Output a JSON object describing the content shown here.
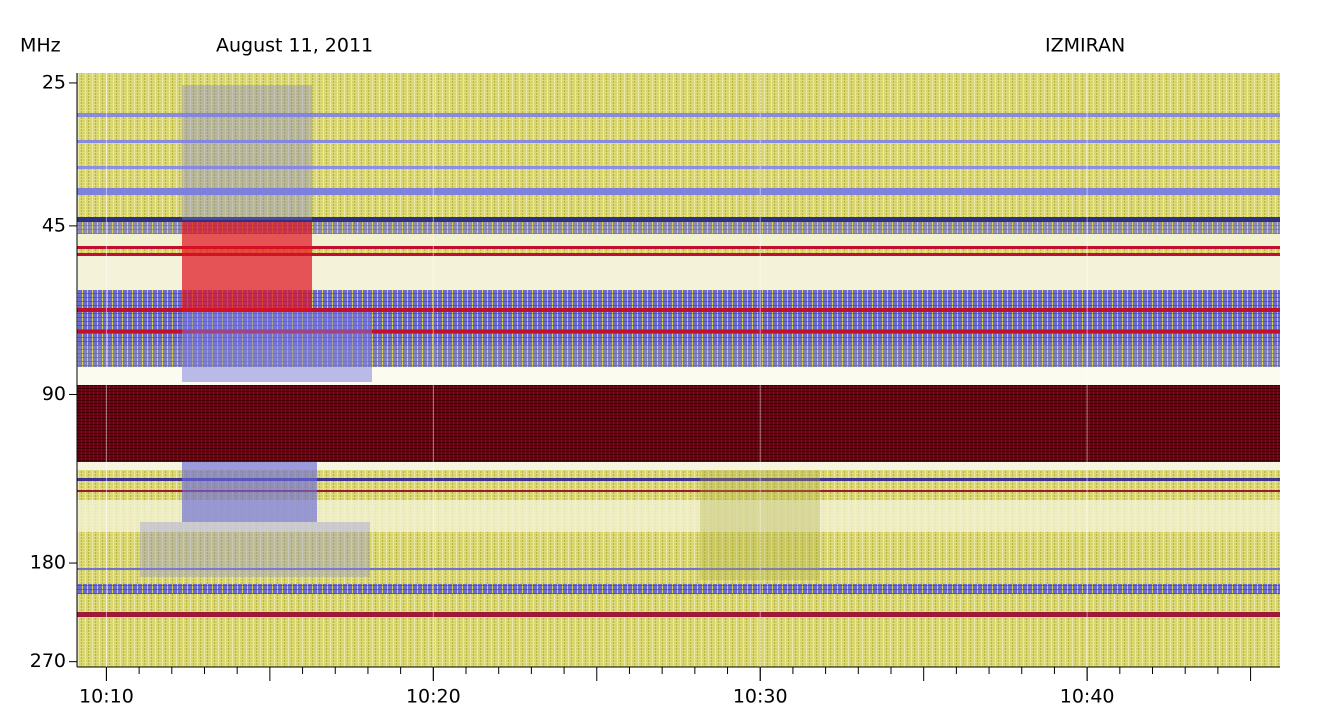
{
  "chart_data": {
    "type": "spectrogram",
    "title": "August 11, 2011",
    "source": "IZMIRAN",
    "y_label": "MHz",
    "ylim": [
      24,
      276
    ],
    "log_y": true,
    "yticks": [
      25,
      45,
      90,
      180,
      270
    ],
    "xlim": [
      609.1,
      645.9
    ],
    "xticks": [
      {
        "value": 610,
        "label": "10:10"
      },
      {
        "value": 620,
        "label": "10:20"
      },
      {
        "value": 630,
        "label": "10:30"
      },
      {
        "value": 640,
        "label": "10:40"
      }
    ],
    "xminorticks": [
      610,
      611,
      612,
      613,
      614,
      615,
      616,
      617,
      618,
      619,
      620,
      621,
      622,
      623,
      624,
      625,
      626,
      627,
      628,
      629,
      630,
      631,
      632,
      633,
      634,
      635,
      636,
      637,
      638,
      639,
      640,
      641,
      642,
      643,
      644,
      645
    ]
  }
}
